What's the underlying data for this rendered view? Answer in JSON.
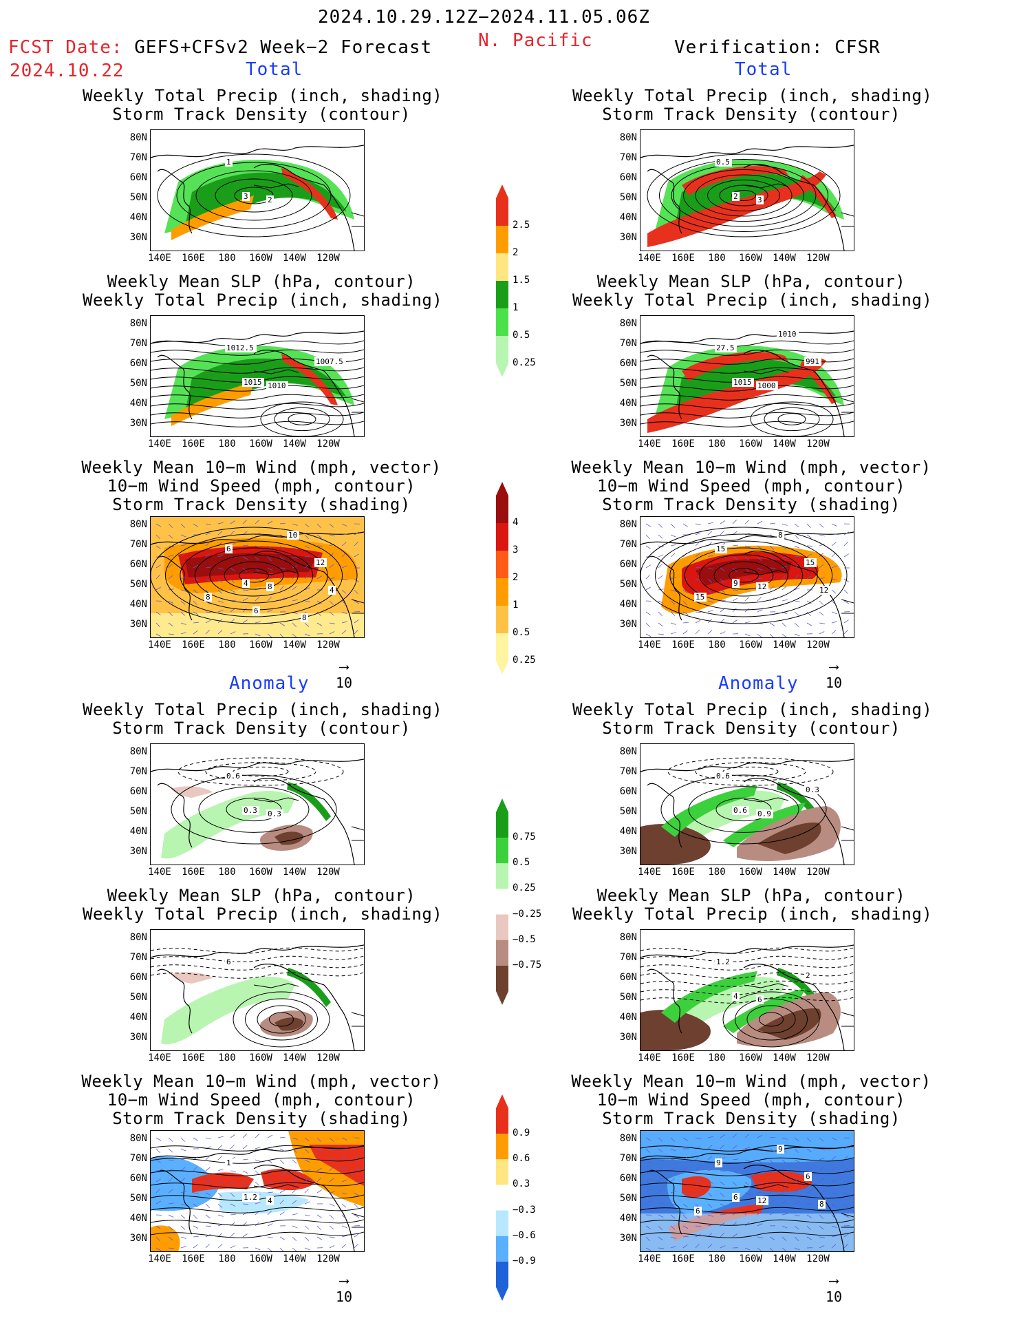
{
  "header": {
    "date_range": "2024.10.29.12Z−2024.11.05.06Z",
    "region": "N. Pacific",
    "fcst_prefix": "FCST Date:",
    "fcst_model": "GEFS+CFSv2 Week−2 Forecast",
    "fcst_date": "2024.10.22",
    "verification": "Verification: CFSR",
    "total_label": "Total",
    "anomaly_label": "Anomaly"
  },
  "axes": {
    "lat_ticks": [
      "80N",
      "70N",
      "60N",
      "50N",
      "40N",
      "30N"
    ],
    "lon_ticks": [
      "140E",
      "160E",
      "180",
      "160W",
      "140W",
      "120W"
    ]
  },
  "panel_titles": {
    "precip_storm": [
      "Weekly Total Precip (inch, shading)",
      "Storm Track Density (contour)"
    ],
    "slp_precip": [
      "Weekly Mean SLP (hPa, contour)",
      "Weekly Total Precip (inch, shading)"
    ],
    "wind_storm": [
      "Weekly Mean 10−m Wind (mph, vector)",
      "10−m Wind Speed (mph, contour)",
      "Storm Track Density (shading)"
    ]
  },
  "vector_ref": "10",
  "colorbars": {
    "precip_total": {
      "labels": [
        "2.5",
        "2",
        "1.5",
        "1",
        "0.5",
        "0.25"
      ],
      "colors": [
        "#e8311d",
        "#ff9d00",
        "#ffe680",
        "#1a9e1a",
        "#4de04d",
        "#b8f5b0"
      ]
    },
    "storm_total": {
      "labels": [
        "4",
        "3",
        "2",
        "1",
        "0.5",
        "0.25"
      ],
      "colors": [
        "#9a0e0e",
        "#d9160f",
        "#ff5a16",
        "#ff9d00",
        "#ffc247",
        "#fff4a0"
      ]
    },
    "precip_anom": {
      "labels": [
        "0.75",
        "0.5",
        "0.25",
        "−0.25",
        "−0.5",
        "−0.75"
      ],
      "colors": [
        "#1a9e1a",
        "#3cd03c",
        "#b8f5b0",
        "#ffffff",
        "#e8c8c0",
        "#b88c80",
        "#6e4030"
      ]
    },
    "storm_anom": {
      "labels": [
        "0.9",
        "0.6",
        "0.3",
        "−0.3",
        "−0.6",
        "−0.9"
      ],
      "colors": [
        "#e8311d",
        "#ff9d00",
        "#ffe680",
        "#ffffff",
        "#b8e8ff",
        "#5ab0ff",
        "#1d62d8"
      ]
    }
  },
  "contour_labels": {
    "p1": [
      "1",
      "3",
      "2"
    ],
    "p2": [
      "1012.5",
      "1015",
      "1010",
      "1007.5"
    ],
    "p3": [
      "6",
      "4",
      "8",
      "12",
      "10",
      "8",
      "4",
      "6",
      "8"
    ],
    "p4": [
      "0.5",
      "2",
      "3"
    ],
    "p5": [
      "27.5",
      "1015",
      "1000",
      "991",
      "1010"
    ],
    "p6": [
      "15",
      "9",
      "12",
      "15",
      "8",
      "15",
      "12"
    ],
    "p7": [
      "0.6",
      "0.3",
      "0.3"
    ],
    "p8": [
      "0.6",
      "0.6",
      "0.9",
      "0.3"
    ],
    "p9": [
      "6"
    ],
    "p10": [
      "1.2",
      "4",
      "6",
      "2"
    ],
    "p11": [
      "1",
      "1.2",
      "4"
    ],
    "p12": [
      "9",
      "6",
      "12",
      "6",
      "9",
      "6",
      "8"
    ]
  }
}
